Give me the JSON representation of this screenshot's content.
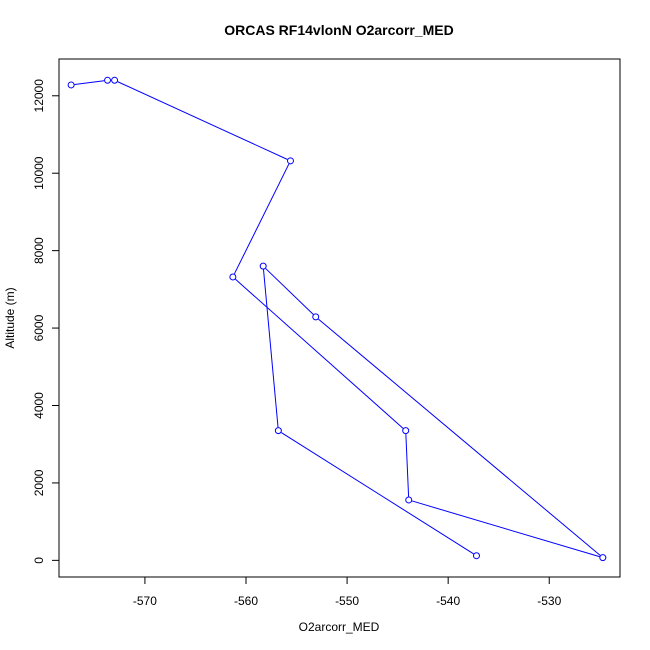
{
  "chart_data": {
    "type": "line",
    "title": "ORCAS RF14vlonN O2arcorr_MED",
    "xlabel": "O2arcorr_MED",
    "ylabel": "Altitude (m)",
    "xlim": [
      -578.5,
      -523.0
    ],
    "ylim": [
      -430,
      12950
    ],
    "x_ticks": [
      -570,
      -560,
      -550,
      -540,
      -530
    ],
    "y_ticks": [
      0,
      2000,
      4000,
      6000,
      8000,
      10000,
      12000
    ],
    "grid": false,
    "legend": "none",
    "line_color": "#0000ff",
    "series": [
      {
        "points": [
          {
            "x": -577.3,
            "y": 12280
          },
          {
            "x": -573.7,
            "y": 12400
          },
          {
            "x": -573.0,
            "y": 12400
          },
          {
            "x": -555.6,
            "y": 10320
          },
          {
            "x": -561.3,
            "y": 7320
          },
          {
            "x": -544.2,
            "y": 3350
          },
          {
            "x": -543.9,
            "y": 1560
          },
          {
            "x": -524.7,
            "y": 70
          },
          {
            "x": -553.1,
            "y": 6290
          },
          {
            "x": -558.3,
            "y": 7600
          },
          {
            "x": -556.8,
            "y": 3350
          },
          {
            "x": -537.2,
            "y": 120
          }
        ]
      }
    ]
  }
}
